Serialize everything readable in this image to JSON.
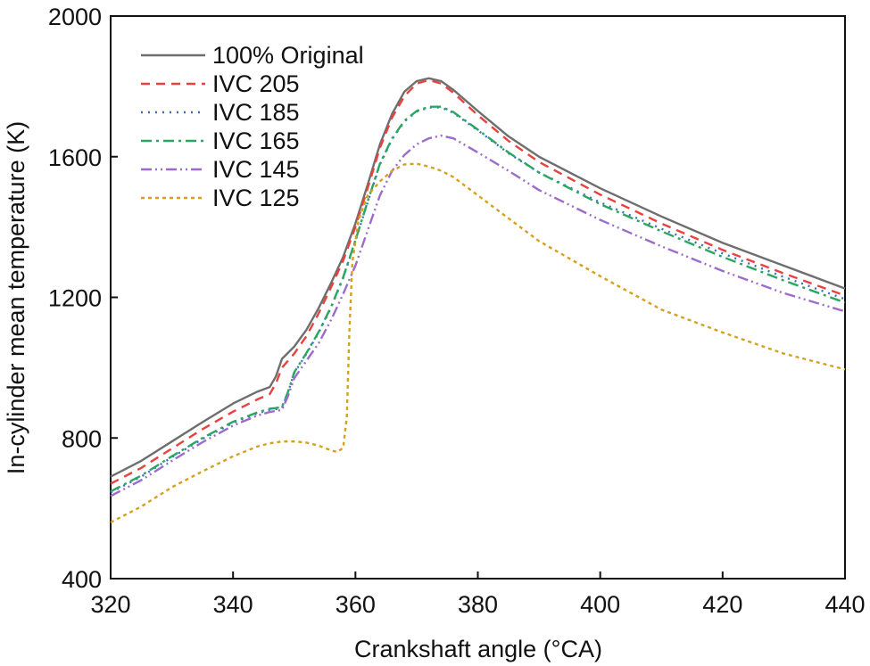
{
  "chart_data": {
    "type": "line",
    "xlabel": "Crankshaft angle (°CA)",
    "ylabel": "In-cylinder mean temperature (K)",
    "xlim": [
      320,
      440
    ],
    "ylim": [
      400,
      2000
    ],
    "xticks": [
      320,
      340,
      360,
      380,
      400,
      420,
      440
    ],
    "yticks": [
      400,
      800,
      1200,
      1600,
      2000
    ],
    "xtick_labels": [
      "320",
      "340",
      "360",
      "380",
      "400",
      "420",
      "440"
    ],
    "ytick_labels": [
      "400",
      "800",
      "1200",
      "1600",
      "2000"
    ],
    "legend_position": "top-left",
    "series": [
      {
        "name": "100% Original",
        "color": "#6e6e6e",
        "dash": "",
        "points": [
          [
            320,
            690
          ],
          [
            325,
            735
          ],
          [
            330,
            790
          ],
          [
            335,
            845
          ],
          [
            340,
            898
          ],
          [
            344,
            932
          ],
          [
            346,
            945
          ],
          [
            347,
            975
          ],
          [
            348,
            1025
          ],
          [
            350,
            1060
          ],
          [
            352,
            1108
          ],
          [
            354,
            1170
          ],
          [
            356,
            1240
          ],
          [
            358,
            1315
          ],
          [
            360,
            1410
          ],
          [
            362,
            1520
          ],
          [
            364,
            1635
          ],
          [
            366,
            1722
          ],
          [
            368,
            1785
          ],
          [
            370,
            1815
          ],
          [
            372,
            1823
          ],
          [
            374,
            1815
          ],
          [
            376,
            1790
          ],
          [
            380,
            1730
          ],
          [
            385,
            1658
          ],
          [
            390,
            1600
          ],
          [
            400,
            1510
          ],
          [
            410,
            1430
          ],
          [
            420,
            1355
          ],
          [
            430,
            1290
          ],
          [
            440,
            1225
          ]
        ]
      },
      {
        "name": "IVC 205",
        "color": "#e8423e",
        "dash": "10,7",
        "points": [
          [
            320,
            670
          ],
          [
            325,
            715
          ],
          [
            330,
            770
          ],
          [
            335,
            825
          ],
          [
            340,
            875
          ],
          [
            344,
            910
          ],
          [
            346,
            925
          ],
          [
            347,
            955
          ],
          [
            348,
            1000
          ],
          [
            350,
            1040
          ],
          [
            352,
            1090
          ],
          [
            354,
            1155
          ],
          [
            356,
            1228
          ],
          [
            358,
            1305
          ],
          [
            360,
            1400
          ],
          [
            362,
            1510
          ],
          [
            364,
            1625
          ],
          [
            366,
            1712
          ],
          [
            368,
            1772
          ],
          [
            370,
            1808
          ],
          [
            372,
            1818
          ],
          [
            374,
            1808
          ],
          [
            376,
            1782
          ],
          [
            380,
            1718
          ],
          [
            385,
            1645
          ],
          [
            390,
            1585
          ],
          [
            400,
            1492
          ],
          [
            410,
            1410
          ],
          [
            420,
            1335
          ],
          [
            430,
            1268
          ],
          [
            440,
            1205
          ]
        ]
      },
      {
        "name": "IVC 185",
        "color": "#3a6fc4",
        "dash": "2,6",
        "points": [
          [
            320,
            645
          ],
          [
            325,
            690
          ],
          [
            330,
            745
          ],
          [
            335,
            797
          ],
          [
            340,
            843
          ],
          [
            344,
            870
          ],
          [
            346,
            880
          ],
          [
            347,
            882
          ],
          [
            348,
            885
          ],
          [
            349,
            930
          ],
          [
            350,
            985
          ],
          [
            352,
            1040
          ],
          [
            354,
            1100
          ],
          [
            356,
            1170
          ],
          [
            358,
            1255
          ],
          [
            360,
            1360
          ],
          [
            362,
            1470
          ],
          [
            364,
            1578
          ],
          [
            366,
            1650
          ],
          [
            368,
            1700
          ],
          [
            370,
            1728
          ],
          [
            372,
            1740
          ],
          [
            374,
            1740
          ],
          [
            376,
            1725
          ],
          [
            380,
            1675
          ],
          [
            385,
            1610
          ],
          [
            390,
            1555
          ],
          [
            400,
            1470
          ],
          [
            410,
            1395
          ],
          [
            420,
            1325
          ],
          [
            430,
            1258
          ],
          [
            440,
            1195
          ]
        ]
      },
      {
        "name": "IVC 165",
        "color": "#2aa562",
        "dash": "12,5,3,5",
        "points": [
          [
            320,
            648
          ],
          [
            325,
            693
          ],
          [
            330,
            748
          ],
          [
            335,
            800
          ],
          [
            340,
            846
          ],
          [
            344,
            873
          ],
          [
            346,
            883
          ],
          [
            347,
            885
          ],
          [
            348,
            888
          ],
          [
            349,
            932
          ],
          [
            350,
            987
          ],
          [
            352,
            1042
          ],
          [
            354,
            1102
          ],
          [
            356,
            1172
          ],
          [
            358,
            1257
          ],
          [
            360,
            1362
          ],
          [
            362,
            1472
          ],
          [
            364,
            1580
          ],
          [
            366,
            1652
          ],
          [
            368,
            1702
          ],
          [
            370,
            1730
          ],
          [
            372,
            1742
          ],
          [
            374,
            1742
          ],
          [
            376,
            1727
          ],
          [
            380,
            1677
          ],
          [
            385,
            1612
          ],
          [
            390,
            1555
          ],
          [
            400,
            1465
          ],
          [
            410,
            1388
          ],
          [
            420,
            1315
          ],
          [
            430,
            1248
          ],
          [
            440,
            1185
          ]
        ]
      },
      {
        "name": "IVC 145",
        "color": "#9b6cc9",
        "dash": "12,4,2,4,2,4",
        "points": [
          [
            320,
            635
          ],
          [
            325,
            680
          ],
          [
            330,
            735
          ],
          [
            335,
            788
          ],
          [
            340,
            835
          ],
          [
            344,
            864
          ],
          [
            346,
            874
          ],
          [
            347,
            877
          ],
          [
            348,
            880
          ],
          [
            349,
            920
          ],
          [
            350,
            970
          ],
          [
            352,
            1020
          ],
          [
            354,
            1070
          ],
          [
            356,
            1135
          ],
          [
            358,
            1210
          ],
          [
            360,
            1290
          ],
          [
            362,
            1390
          ],
          [
            364,
            1490
          ],
          [
            366,
            1560
          ],
          [
            368,
            1605
          ],
          [
            370,
            1635
          ],
          [
            372,
            1652
          ],
          [
            374,
            1660
          ],
          [
            376,
            1652
          ],
          [
            380,
            1612
          ],
          [
            385,
            1560
          ],
          [
            390,
            1505
          ],
          [
            400,
            1420
          ],
          [
            410,
            1345
          ],
          [
            420,
            1275
          ],
          [
            430,
            1212
          ],
          [
            440,
            1160
          ]
        ]
      },
      {
        "name": "IVC 125",
        "color": "#d4a020",
        "dash": "4,4",
        "points": [
          [
            320,
            560
          ],
          [
            325,
            605
          ],
          [
            330,
            660
          ],
          [
            335,
            705
          ],
          [
            340,
            748
          ],
          [
            344,
            776
          ],
          [
            346,
            785
          ],
          [
            348,
            790
          ],
          [
            350,
            790
          ],
          [
            352,
            787
          ],
          [
            354,
            778
          ],
          [
            356,
            765
          ],
          [
            357,
            760
          ],
          [
            358,
            772
          ],
          [
            358.6,
            860
          ],
          [
            359,
            1100
          ],
          [
            359.5,
            1300
          ],
          [
            360.5,
            1420
          ],
          [
            362,
            1490
          ],
          [
            364,
            1530
          ],
          [
            366,
            1560
          ],
          [
            368,
            1578
          ],
          [
            370,
            1580
          ],
          [
            372,
            1572
          ],
          [
            374,
            1560
          ],
          [
            376,
            1542
          ],
          [
            380,
            1490
          ],
          [
            385,
            1425
          ],
          [
            390,
            1360
          ],
          [
            400,
            1260
          ],
          [
            410,
            1165
          ],
          [
            420,
            1100
          ],
          [
            430,
            1040
          ],
          [
            440,
            995
          ]
        ]
      }
    ]
  }
}
